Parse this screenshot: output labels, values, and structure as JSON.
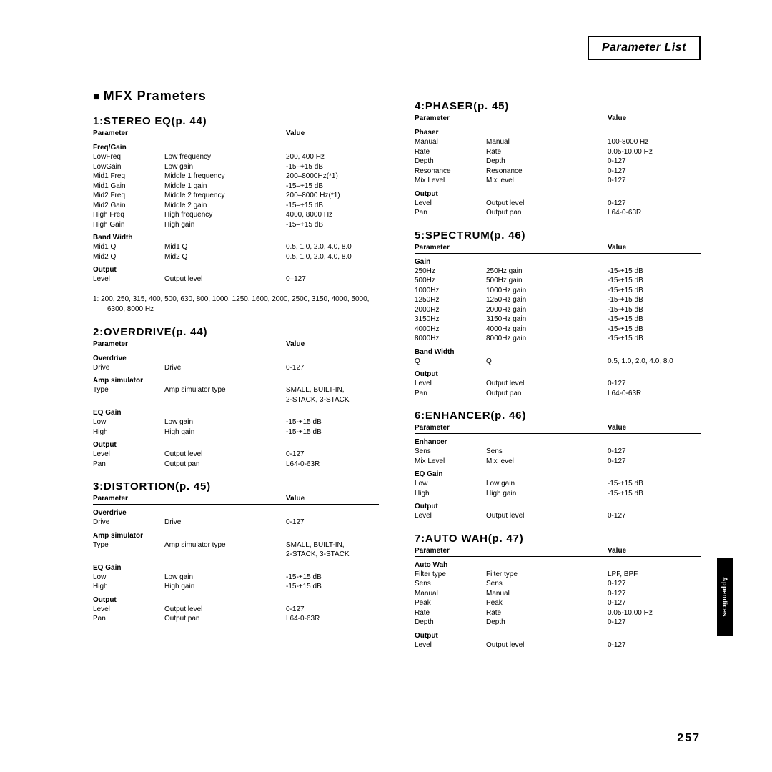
{
  "header": "Parameter List",
  "main_title": "MFX Prameters",
  "param_label": "Parameter",
  "value_label": "Value",
  "side_tab": "Appendices",
  "page_number": "257",
  "left": {
    "s1": {
      "title": "1:STEREO EQ(p. 44)",
      "g1": "Freq/Gain",
      "r": [
        [
          "LowFreq",
          "Low frequency",
          "200, 400 Hz"
        ],
        [
          "LowGain",
          "Low gain",
          "-15–+15 dB"
        ],
        [
          "Mid1 Freq",
          "Middle 1 frequency",
          "200–8000Hz(*1)"
        ],
        [
          "Mid1 Gain",
          "Middle 1 gain",
          "-15–+15 dB"
        ],
        [
          "Mid2 Freq",
          "Middle 2 frequency",
          "200–8000 Hz(*1)"
        ],
        [
          "Mid2 Gain",
          "Middle 2 gain",
          "-15–+15 dB"
        ],
        [
          "High Freq",
          "High frequency",
          "4000, 8000 Hz"
        ],
        [
          "High Gain",
          "High gain",
          "-15–+15 dB"
        ]
      ],
      "g2": "Band Width",
      "r2": [
        [
          "Mid1 Q",
          "Mid1 Q",
          "0.5, 1.0, 2.0, 4.0, 8.0"
        ],
        [
          "Mid2 Q",
          "Mid2 Q",
          "0.5, 1.0, 2.0, 4.0, 8.0"
        ]
      ],
      "g3": "Output",
      "r3": [
        [
          "Level",
          "Output level",
          "0–127"
        ]
      ],
      "footnote": "1:   200, 250, 315, 400, 500, 630, 800, 1000, 1250, 1600, 2000, 2500, 3150, 4000, 5000, 6300, 8000 Hz"
    },
    "s2": {
      "title": "2:OVERDRIVE(p. 44)",
      "g1": "Overdrive",
      "r": [
        [
          "Drive",
          "Drive",
          "0-127"
        ]
      ],
      "g2": "Amp simulator",
      "r2": [
        [
          "Type",
          "Amp simulator type",
          "SMALL, BUILT-IN,"
        ],
        [
          "",
          "",
          "2-STACK, 3-STACK"
        ]
      ],
      "g3": "EQ Gain",
      "r3": [
        [
          "Low",
          "Low gain",
          "-15-+15 dB"
        ],
        [
          "High",
          "High gain",
          "-15-+15 dB"
        ]
      ],
      "g4": "Output",
      "r4": [
        [
          "Level",
          "Output level",
          "0-127"
        ],
        [
          "Pan",
          "Output pan",
          "L64-0-63R"
        ]
      ]
    },
    "s3": {
      "title": "3:DISTORTION(p. 45)",
      "g1": "Overdrive",
      "r": [
        [
          "Drive",
          "Drive",
          "0-127"
        ]
      ],
      "g2": "Amp simulator",
      "r2": [
        [
          "Type",
          "Amp simulator type",
          "SMALL, BUILT-IN,"
        ],
        [
          "",
          "",
          "2-STACK, 3-STACK"
        ]
      ],
      "g3": "EQ Gain",
      "r3": [
        [
          "Low",
          "Low gain",
          "-15-+15 dB"
        ],
        [
          "High",
          "High gain",
          "-15-+15 dB"
        ]
      ],
      "g4": "Output",
      "r4": [
        [
          "Level",
          "Output level",
          "0-127"
        ],
        [
          "Pan",
          "Output pan",
          "L64-0-63R"
        ]
      ]
    }
  },
  "right": {
    "s4": {
      "title": "4:PHASER(p. 45)",
      "g1": "Phaser",
      "r": [
        [
          "Manual",
          "Manual",
          "100-8000 Hz"
        ],
        [
          "Rate",
          "Rate",
          "0.05-10.00 Hz"
        ],
        [
          "Depth",
          "Depth",
          "0-127"
        ],
        [
          "Resonance",
          "Resonance",
          "0-127"
        ],
        [
          "Mix Level",
          "Mix level",
          "0-127"
        ]
      ],
      "g2": "Output",
      "r2": [
        [
          "Level",
          "Output level",
          "0-127"
        ],
        [
          "Pan",
          "Output pan",
          "L64-0-63R"
        ]
      ]
    },
    "s5": {
      "title": "5:SPECTRUM(p. 46)",
      "g1": "Gain",
      "r": [
        [
          "250Hz",
          "250Hz gain",
          "-15-+15 dB"
        ],
        [
          "500Hz",
          "500Hz gain",
          "-15-+15 dB"
        ],
        [
          "1000Hz",
          "1000Hz gain",
          "-15-+15 dB"
        ],
        [
          "1250Hz",
          "1250Hz gain",
          "-15-+15 dB"
        ],
        [
          "2000Hz",
          "2000Hz gain",
          "-15-+15 dB"
        ],
        [
          "3150Hz",
          "3150Hz gain",
          "-15-+15 dB"
        ],
        [
          "4000Hz",
          "4000Hz gain",
          "-15-+15 dB"
        ],
        [
          "8000Hz",
          "8000Hz gain",
          "-15-+15 dB"
        ]
      ],
      "g2": "Band Width",
      "r2": [
        [
          "Q",
          "Q",
          "0.5, 1.0, 2.0, 4.0, 8.0"
        ]
      ],
      "g3": "Output",
      "r3": [
        [
          "Level",
          "Output level",
          "0-127"
        ],
        [
          "Pan",
          "Output pan",
          "L64-0-63R"
        ]
      ]
    },
    "s6": {
      "title": "6:ENHANCER(p. 46)",
      "g1": "Enhancer",
      "r": [
        [
          "Sens",
          "Sens",
          "0-127"
        ],
        [
          "Mix Level",
          "Mix level",
          "0-127"
        ]
      ],
      "g2": "EQ Gain",
      "r2": [
        [
          "Low",
          "Low gain",
          "-15-+15 dB"
        ],
        [
          "High",
          "High gain",
          "-15-+15 dB"
        ]
      ],
      "g3": "Output",
      "r3": [
        [
          "Level",
          "Output level",
          "0-127"
        ]
      ]
    },
    "s7": {
      "title": "7:AUTO WAH(p. 47)",
      "g1": "Auto Wah",
      "r": [
        [
          "Filter type",
          "Filter type",
          "LPF, BPF"
        ],
        [
          "Sens",
          "Sens",
          "0-127"
        ],
        [
          "Manual",
          "Manual",
          "0-127"
        ],
        [
          "Peak",
          "Peak",
          "0-127"
        ],
        [
          "Rate",
          "Rate",
          "0.05-10.00 Hz"
        ],
        [
          "Depth",
          "Depth",
          "0-127"
        ]
      ],
      "g2": "Output",
      "r2": [
        [
          "Level",
          "Output level",
          "0-127"
        ]
      ]
    }
  }
}
